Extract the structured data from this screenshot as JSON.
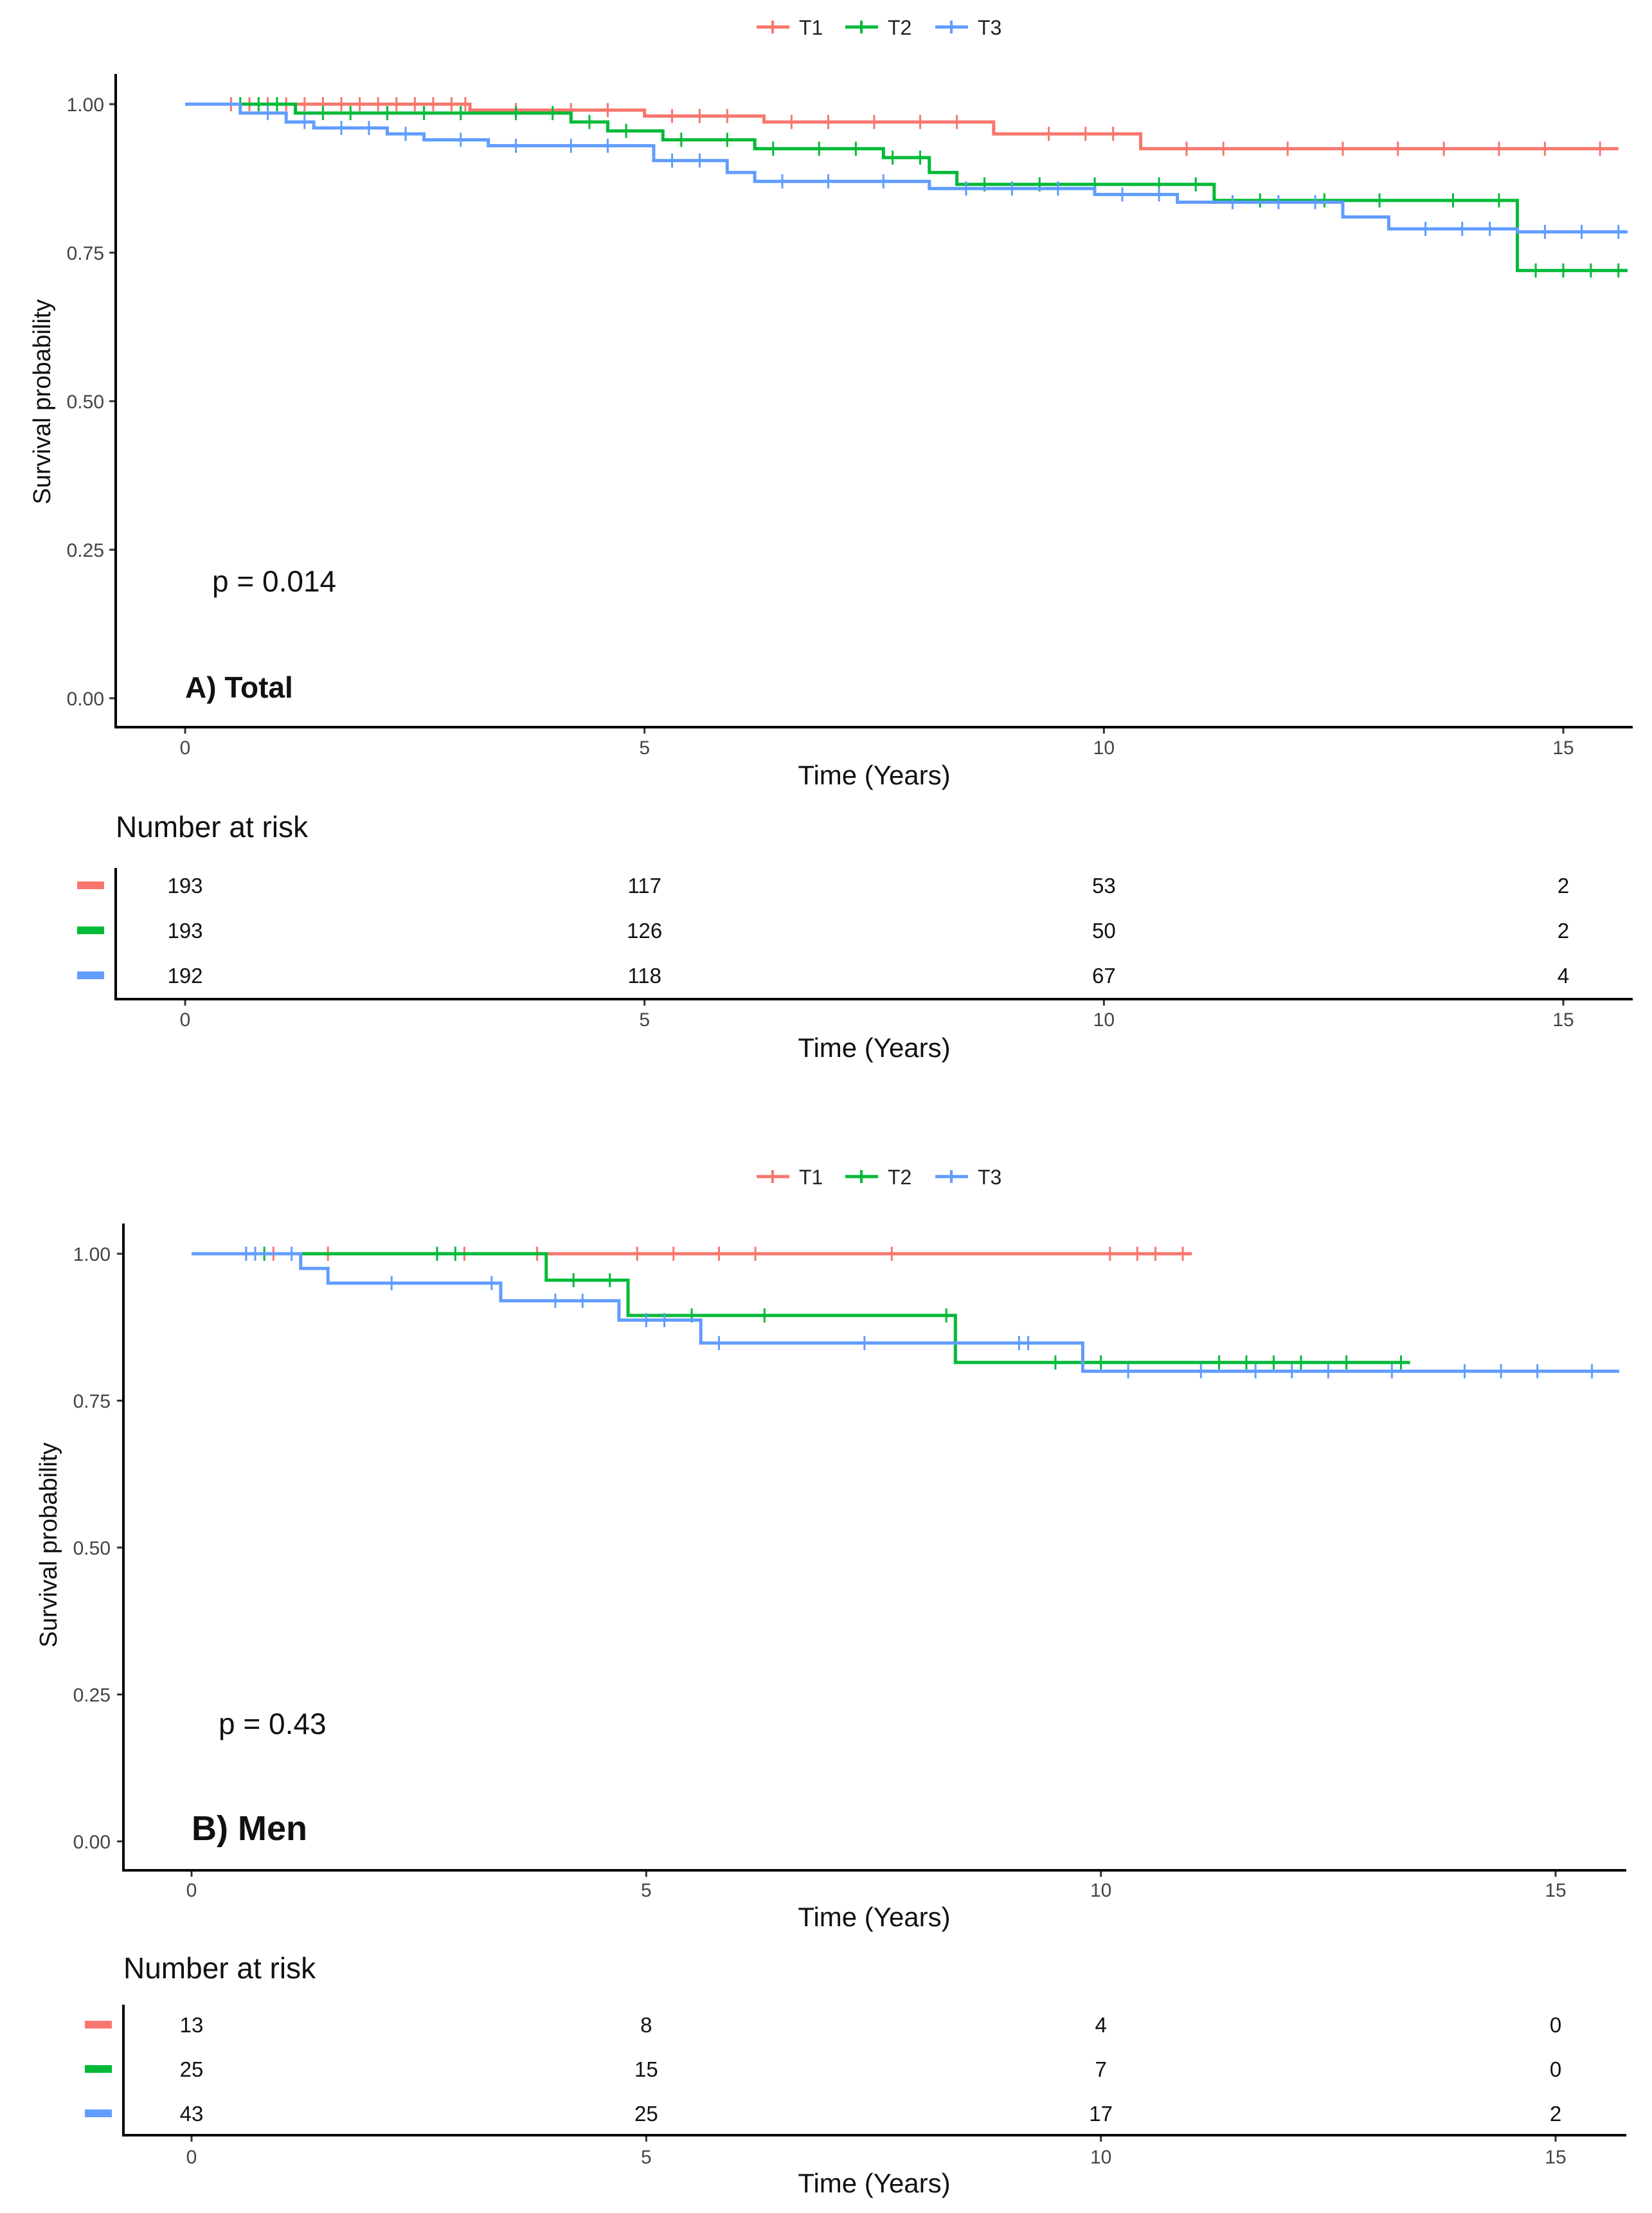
{
  "chart_data": [
    {
      "type": "line",
      "subtype": "kaplan-meier",
      "panel_label": "A) Total",
      "ylabel": "Survival probability",
      "xlabel": "Time (Years)",
      "xlim": [
        0,
        15.7
      ],
      "ylim": [
        0,
        1.04
      ],
      "x_ticks": [
        "0",
        "5",
        "10",
        "15"
      ],
      "y_ticks": [
        "0.00",
        "0.25",
        "0.50",
        "0.75",
        "1.00"
      ],
      "p_value_text": "p = 0.014",
      "legend": [
        "T1",
        "T2",
        "T3"
      ],
      "series": [
        {
          "name": "T1",
          "color": "#f8766d",
          "steps": [
            [
              0,
              1.0
            ],
            [
              3.1,
              0.99
            ],
            [
              5.0,
              0.98
            ],
            [
              6.3,
              0.97
            ],
            [
              8.8,
              0.95
            ],
            [
              10.4,
              0.925
            ]
          ],
          "end": 15.6,
          "censors": [
            0.5,
            0.7,
            0.9,
            1.1,
            1.3,
            1.5,
            1.7,
            1.9,
            2.1,
            2.3,
            2.5,
            2.7,
            2.9,
            3.05,
            3.6,
            4.2,
            4.6,
            5.3,
            5.6,
            5.9,
            6.6,
            7.0,
            7.5,
            8.0,
            8.4,
            9.4,
            9.8,
            10.1,
            10.9,
            11.3,
            12.0,
            12.6,
            13.2,
            13.7,
            14.3,
            14.8,
            15.4
          ]
        },
        {
          "name": "T2",
          "color": "#00ba38",
          "steps": [
            [
              0,
              1.0
            ],
            [
              1.2,
              0.985
            ],
            [
              4.2,
              0.97
            ],
            [
              4.6,
              0.955
            ],
            [
              5.2,
              0.94
            ],
            [
              6.2,
              0.925
            ],
            [
              7.6,
              0.91
            ],
            [
              8.1,
              0.885
            ],
            [
              8.4,
              0.865
            ],
            [
              11.2,
              0.838
            ],
            [
              14.5,
              0.72
            ]
          ],
          "end": 15.7,
          "censors": [
            0.6,
            0.8,
            1.0,
            1.5,
            1.8,
            2.2,
            2.6,
            3.0,
            3.6,
            4.0,
            4.4,
            4.8,
            5.4,
            5.9,
            6.4,
            6.9,
            7.3,
            7.7,
            8.0,
            8.7,
            9.3,
            9.9,
            10.6,
            11.0,
            11.7,
            12.4,
            13.0,
            13.8,
            14.3,
            14.7,
            15.0,
            15.3,
            15.6
          ]
        },
        {
          "name": "T3",
          "color": "#619cff",
          "steps": [
            [
              0,
              1.0
            ],
            [
              0.6,
              0.985
            ],
            [
              1.1,
              0.97
            ],
            [
              1.4,
              0.96
            ],
            [
              2.2,
              0.95
            ],
            [
              2.6,
              0.94
            ],
            [
              3.3,
              0.93
            ],
            [
              5.1,
              0.905
            ],
            [
              5.9,
              0.885
            ],
            [
              6.2,
              0.87
            ],
            [
              8.1,
              0.858
            ],
            [
              9.9,
              0.848
            ],
            [
              10.8,
              0.835
            ],
            [
              12.6,
              0.81
            ],
            [
              13.1,
              0.79
            ],
            [
              14.5,
              0.785
            ]
          ],
          "end": 15.7,
          "censors": [
            0.9,
            1.3,
            1.7,
            2.0,
            2.4,
            3.0,
            3.6,
            4.2,
            4.6,
            5.3,
            5.6,
            6.5,
            7.0,
            7.6,
            8.5,
            9.0,
            9.5,
            10.2,
            10.6,
            11.4,
            11.9,
            12.3,
            13.5,
            13.9,
            14.2,
            14.8,
            15.2,
            15.6
          ]
        }
      ],
      "risk_table": {
        "title": "Number at risk",
        "xlabel": "Time (Years)",
        "times": [
          "0",
          "5",
          "10",
          "15"
        ],
        "rows": [
          {
            "name": "T1",
            "color": "#f8766d",
            "values": [
              "193",
              "117",
              "53",
              "2"
            ]
          },
          {
            "name": "T2",
            "color": "#00ba38",
            "values": [
              "193",
              "126",
              "50",
              "2"
            ]
          },
          {
            "name": "T3",
            "color": "#619cff",
            "values": [
              "192",
              "118",
              "67",
              "4"
            ]
          }
        ]
      }
    },
    {
      "type": "line",
      "subtype": "kaplan-meier",
      "panel_label": "B) Men",
      "ylabel": "Survival probability",
      "xlabel": "Time (Years)",
      "xlim": [
        0,
        15.7
      ],
      "ylim": [
        0,
        1.04
      ],
      "x_ticks": [
        "0",
        "5",
        "10",
        "15"
      ],
      "y_ticks": [
        "0.00",
        "0.25",
        "0.50",
        "0.75",
        "1.00"
      ],
      "p_value_text": "p = 0.43",
      "legend": [
        "T1",
        "T2",
        "T3"
      ],
      "series": [
        {
          "name": "T1",
          "color": "#f8766d",
          "steps": [
            [
              0,
              1.0
            ]
          ],
          "end": 11.0,
          "censors": [
            0.6,
            0.9,
            1.5,
            3.0,
            3.8,
            4.9,
            5.3,
            5.8,
            6.2,
            7.7,
            10.1,
            10.4,
            10.6,
            10.9
          ]
        },
        {
          "name": "T2",
          "color": "#00ba38",
          "steps": [
            [
              0,
              1.0
            ],
            [
              3.9,
              0.955
            ],
            [
              4.8,
              0.895
            ],
            [
              8.4,
              0.815
            ]
          ],
          "end": 13.4,
          "censors": [
            0.8,
            2.7,
            2.9,
            4.2,
            4.6,
            5.5,
            6.3,
            8.3,
            9.5,
            10.0,
            11.3,
            11.6,
            11.9,
            12.2,
            12.7,
            13.3
          ]
        },
        {
          "name": "T3",
          "color": "#619cff",
          "steps": [
            [
              0,
              1.0
            ],
            [
              1.2,
              0.975
            ],
            [
              1.5,
              0.95
            ],
            [
              3.4,
              0.92
            ],
            [
              4.7,
              0.887
            ],
            [
              5.6,
              0.848
            ],
            [
              9.8,
              0.8
            ]
          ],
          "end": 15.7,
          "censors": [
            0.6,
            0.7,
            1.1,
            2.2,
            3.3,
            4.0,
            4.3,
            5.0,
            5.2,
            5.8,
            7.4,
            9.1,
            9.2,
            10.3,
            11.1,
            11.7,
            12.1,
            12.5,
            13.2,
            14.0,
            14.4,
            14.8,
            15.4
          ]
        }
      ],
      "risk_table": {
        "title": "Number at risk",
        "xlabel": "Time (Years)",
        "times": [
          "0",
          "5",
          "10",
          "15"
        ],
        "rows": [
          {
            "name": "T1",
            "color": "#f8766d",
            "values": [
              "13",
              "8",
              "4",
              "0"
            ]
          },
          {
            "name": "T2",
            "color": "#00ba38",
            "values": [
              "25",
              "15",
              "7",
              "0"
            ]
          },
          {
            "name": "T3",
            "color": "#619cff",
            "values": [
              "43",
              "25",
              "17",
              "2"
            ]
          }
        ]
      }
    }
  ]
}
